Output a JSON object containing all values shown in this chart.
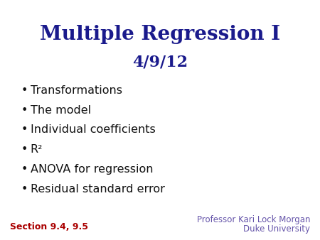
{
  "title_line1": "Multiple Regression I",
  "title_line2": "4/9/12",
  "title_color": "#1a1a8c",
  "bullet_items": [
    "Transformations",
    "The model",
    "Individual coefficients",
    "R²",
    "ANOVA for regression",
    "Residual standard error"
  ],
  "bullet_color": "#111111",
  "section_text": "Section 9.4, 9.5",
  "section_color": "#aa0000",
  "professor_line1": "Professor Kari Lock Morgan",
  "professor_line2": "Duke University",
  "professor_color": "#6655aa",
  "background_color": "#ffffff",
  "title_fontsize": 20,
  "subtitle_fontsize": 16,
  "bullet_fontsize": 11.5,
  "footer_fontsize": 9
}
